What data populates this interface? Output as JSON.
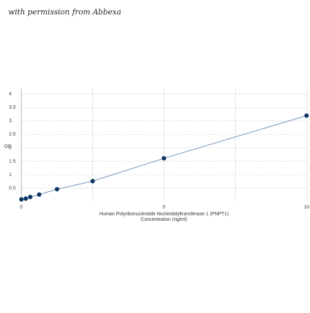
{
  "watermark": "with permission from Abbexa",
  "chart_data": {
    "type": "line",
    "ylabel": "OD",
    "xlabel": [
      "Human Polyribonucleotide Nucleotidyltransferase 1 (PNPT1)",
      "Concentration (ng/ml)"
    ],
    "x": [
      0,
      0.156,
      0.312,
      0.625,
      1.25,
      2.5,
      5,
      10
    ],
    "series": [
      {
        "color": "#0d3566",
        "line_color": "#5a82b0",
        "values": [
          0.08,
          0.11,
          0.17,
          0.26,
          0.46,
          0.76,
          1.61,
          3.2
        ]
      }
    ],
    "xlim": [
      0,
      10
    ],
    "ylim": [
      0,
      4.2
    ],
    "xticks": [
      0,
      5,
      10
    ],
    "minor_xticks": [
      2.5,
      7.5
    ],
    "yticks": [
      0.5,
      1,
      1.5,
      2,
      2.5,
      3,
      3.5,
      4
    ],
    "grid": true
  }
}
